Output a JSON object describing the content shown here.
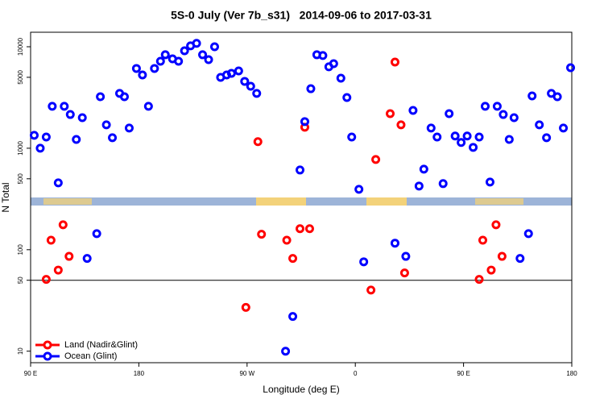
{
  "chart_data": {
    "type": "scatter",
    "title": "5S-0 July (Ver 7b_s31)   2014-09-06 to 2017-03-31",
    "x_label": "Longitude (deg E)",
    "y_label": "N Total",
    "log_y": true,
    "legend": "bottom-left",
    "reference_line": 50,
    "xlim": [
      90,
      540
    ],
    "xticks": [
      {
        "value": 90,
        "label": "90 E"
      },
      180,
      {
        "value": 270,
        "label": "90 W"
      },
      {
        "value": 360,
        "label": "0"
      },
      {
        "value": 450,
        "label": "90 E"
      },
      {
        "value": 540,
        "label": "180"
      }
    ],
    "ylim": [
      7.7,
      13900
    ],
    "yticks": [
      10,
      50,
      100,
      500,
      1000,
      5000,
      10000
    ],
    "series": [
      {
        "name": "Land (Nadir&Glint)",
        "color": "#ff0000",
        "x": [
          103,
          107,
          113,
          117,
          122,
          269,
          279,
          282,
          303,
          308,
          314,
          318,
          322,
          373,
          377,
          389,
          393,
          398,
          401,
          463,
          466,
          473,
          477,
          482
        ],
        "values": [
          51,
          124,
          63,
          176,
          86,
          27,
          1160,
          142,
          124,
          82,
          161,
          1610,
          161,
          40,
          774,
          2190,
          7060,
          1700,
          59,
          51,
          124,
          63,
          176,
          86
        ]
      },
      {
        "name": "Ocean (Glint)",
        "color": "#0000ff",
        "x": [
          93,
          98,
          103,
          108,
          113,
          118,
          123,
          128,
          133,
          137,
          145,
          148,
          153,
          158,
          164,
          168,
          172,
          178,
          183,
          188,
          193,
          198,
          202,
          208,
          213,
          218,
          223,
          228,
          233,
          238,
          243,
          248,
          253,
          257,
          263,
          268,
          273,
          278,
          302,
          308,
          314,
          318,
          323,
          328,
          333,
          338,
          342,
          348,
          353,
          357,
          363,
          367,
          393,
          402,
          408,
          413,
          417,
          423,
          428,
          433,
          438,
          443,
          448,
          453,
          458,
          463,
          468,
          472,
          478,
          483,
          488,
          492,
          497,
          504,
          507,
          513,
          519,
          523,
          528,
          533,
          539
        ],
        "values": [
          1340,
          1000,
          1290,
          2590,
          456,
          2590,
          2150,
          1220,
          2000,
          82,
          144,
          3220,
          1700,
          1270,
          3470,
          3220,
          1580,
          6110,
          5270,
          2590,
          6110,
          7200,
          8340,
          7600,
          7200,
          9120,
          10200,
          10800,
          8340,
          7460,
          10000,
          4990,
          5270,
          5470,
          5780,
          4560,
          4080,
          3470,
          10,
          22,
          610,
          1830,
          3860,
          8340,
          8190,
          6340,
          6810,
          4900,
          3160,
          1290,
          394,
          76,
          116,
          86,
          2360,
          424,
          622,
          1580,
          1290,
          448,
          2190,
          1320,
          1140,
          1320,
          1020,
          1290,
          2590,
          464,
          2590,
          2150,
          1220,
          2000,
          82,
          144,
          3280,
          1700,
          1270,
          3470,
          3220,
          1580,
          6220
        ]
      }
    ]
  }
}
